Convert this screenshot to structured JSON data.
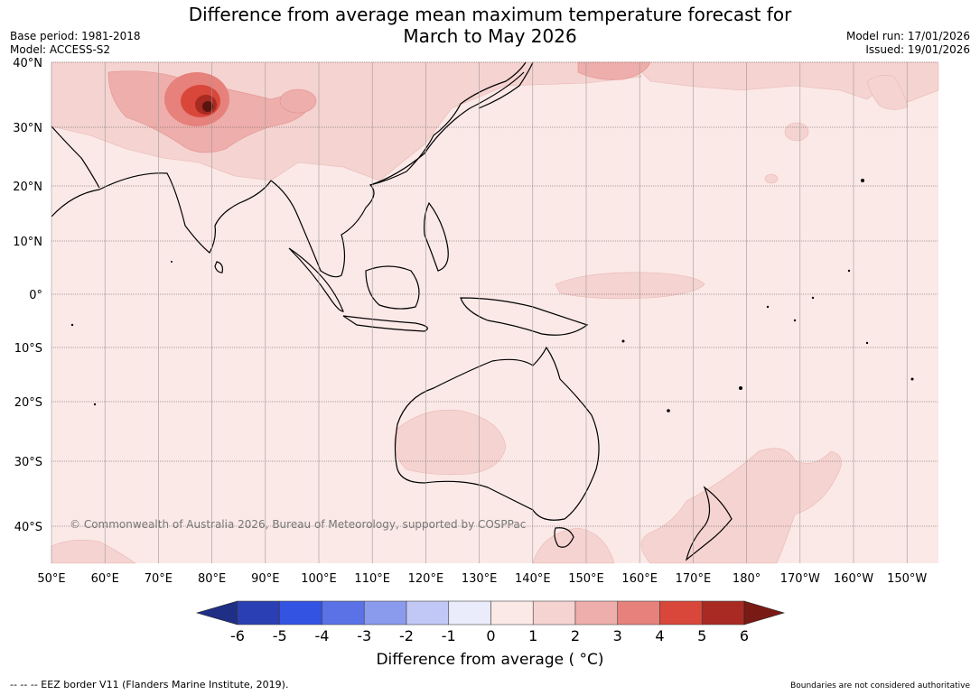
{
  "title": {
    "line1": "Difference from average mean maximum temperature forecast for",
    "line2": "March to May 2026"
  },
  "meta_left": {
    "base_period": "Base period: 1981-2018",
    "model": "Model: ACCESS-S2"
  },
  "meta_right": {
    "model_run": "Model run: 17/01/2026",
    "issued": "Issued: 19/01/2026"
  },
  "map": {
    "copyright": "© Commonwealth of Australia 2026, Bureau of Meteorology, supported by COSPPac",
    "lat_labels": [
      "40°N",
      "30°N",
      "20°N",
      "10°N",
      "0°",
      "10°S",
      "20°S",
      "30°S",
      "40°S"
    ],
    "lon_labels": [
      "50°E",
      "60°E",
      "70°E",
      "80°E",
      "90°E",
      "100°E",
      "110°E",
      "120°E",
      "130°E",
      "140°E",
      "150°E",
      "160°E",
      "170°E",
      "180°",
      "170°W",
      "160°W",
      "150°W"
    ],
    "background_color": "#fbe9e7",
    "anomaly_regions": [
      {
        "name": "northern-india-pakistan",
        "level": "1 to 2"
      },
      {
        "name": "himalaya-hotspot",
        "level": "3 to 6"
      },
      {
        "name": "equatorial-pacific",
        "level": "1 to 2"
      },
      {
        "name": "western-australia",
        "level": "1 to 2"
      },
      {
        "name": "tasman-sea",
        "level": "1 to 2"
      }
    ]
  },
  "colorbar": {
    "ticks": [
      "-6",
      "-5",
      "-4",
      "-3",
      "-2",
      "-1",
      "0",
      "1",
      "2",
      "3",
      "4",
      "5",
      "6"
    ],
    "colors": [
      "#1f2f86",
      "#2a3fb4",
      "#3353e3",
      "#5a72e6",
      "#8a9bee",
      "#c1c8f6",
      "#eaebfb",
      "#fbe9e7",
      "#f5d3d1",
      "#eeaeab",
      "#e6817b",
      "#d9463a",
      "#a82a22",
      "#7a1a14"
    ],
    "label": "Difference from average ( °C)"
  },
  "footer": {
    "left": "--  --  -- EEZ border V11 (Flanders Marine Institute, 2019).",
    "right": "Boundaries are not considered authoritative"
  }
}
